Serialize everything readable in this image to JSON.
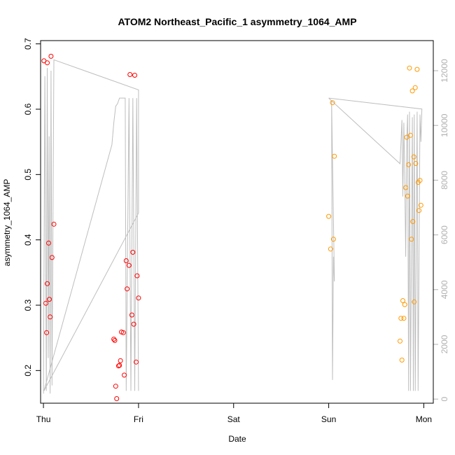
{
  "chart_data": {
    "type": "scatter",
    "title": "ATOM2 Northeast_Pacific_1 asymmetry_1064_AMP",
    "xlabel": "Date",
    "ylabel": "asymmetry_1064_AMP",
    "x_unit": "days",
    "xlim": [
      -0.03,
      4.1
    ],
    "ylim": [
      0.15,
      0.705
    ],
    "y2lim": [
      -150,
      13100
    ],
    "x_ticks": [
      {
        "value": 0,
        "label": "Thu"
      },
      {
        "value": 1,
        "label": "Fri"
      },
      {
        "value": 2,
        "label": "Sat"
      },
      {
        "value": 3,
        "label": "Sun"
      },
      {
        "value": 4,
        "label": "Mon"
      }
    ],
    "y_ticks": [
      {
        "value": 0.2,
        "label": "0.2"
      },
      {
        "value": 0.3,
        "label": "0.3"
      },
      {
        "value": 0.4,
        "label": "0.4"
      },
      {
        "value": 0.5,
        "label": "0.5"
      },
      {
        "value": 0.6,
        "label": "0.6"
      },
      {
        "value": 0.7,
        "label": "0.7"
      }
    ],
    "y2_ticks": [
      {
        "value": 0,
        "label": "0"
      },
      {
        "value": 2000,
        "label": "2000"
      },
      {
        "value": 4000,
        "label": "4000"
      },
      {
        "value": 6000,
        "label": "6000"
      },
      {
        "value": 8000,
        "label": "8000"
      },
      {
        "value": 10000,
        "label": "10000"
      },
      {
        "value": 12000,
        "label": "12000"
      }
    ],
    "grid": false,
    "legend": "none",
    "series": [
      {
        "color": "#ff0000",
        "points": [
          {
            "x": 0.005,
            "y": 0.674
          },
          {
            "x": 0.04,
            "y": 0.671
          },
          {
            "x": 0.08,
            "y": 0.681
          },
          {
            "x": 0.025,
            "y": 0.303
          },
          {
            "x": 0.033,
            "y": 0.258
          },
          {
            "x": 0.04,
            "y": 0.333
          },
          {
            "x": 0.055,
            "y": 0.395
          },
          {
            "x": 0.062,
            "y": 0.309
          },
          {
            "x": 0.07,
            "y": 0.282
          },
          {
            "x": 0.09,
            "y": 0.373
          },
          {
            "x": 0.11,
            "y": 0.424
          },
          {
            "x": 0.74,
            "y": 0.248
          },
          {
            "x": 0.75,
            "y": 0.246
          },
          {
            "x": 0.76,
            "y": 0.176
          },
          {
            "x": 0.77,
            "y": 0.157
          },
          {
            "x": 0.79,
            "y": 0.207
          },
          {
            "x": 0.8,
            "y": 0.208
          },
          {
            "x": 0.81,
            "y": 0.215
          },
          {
            "x": 0.82,
            "y": 0.259
          },
          {
            "x": 0.84,
            "y": 0.258
          },
          {
            "x": 0.85,
            "y": 0.193
          },
          {
            "x": 0.87,
            "y": 0.368
          },
          {
            "x": 0.88,
            "y": 0.325
          },
          {
            "x": 0.9,
            "y": 0.361
          },
          {
            "x": 0.91,
            "y": 0.653
          },
          {
            "x": 0.93,
            "y": 0.285
          },
          {
            "x": 0.94,
            "y": 0.381
          },
          {
            "x": 0.95,
            "y": 0.271
          },
          {
            "x": 0.96,
            "y": 0.652
          },
          {
            "x": 0.975,
            "y": 0.213
          },
          {
            "x": 0.985,
            "y": 0.345
          },
          {
            "x": 1.0,
            "y": 0.311
          }
        ]
      },
      {
        "color": "#ff9900",
        "points": [
          {
            "x": 3.0,
            "y": 0.436
          },
          {
            "x": 3.02,
            "y": 0.386
          },
          {
            "x": 3.04,
            "y": 0.61
          },
          {
            "x": 3.05,
            "y": 0.401
          },
          {
            "x": 3.06,
            "y": 0.528
          },
          {
            "x": 3.75,
            "y": 0.245
          },
          {
            "x": 3.76,
            "y": 0.28
          },
          {
            "x": 3.77,
            "y": 0.216
          },
          {
            "x": 3.78,
            "y": 0.307
          },
          {
            "x": 3.79,
            "y": 0.28
          },
          {
            "x": 3.8,
            "y": 0.301
          },
          {
            "x": 3.81,
            "y": 0.48
          },
          {
            "x": 3.82,
            "y": 0.557
          },
          {
            "x": 3.83,
            "y": 0.467
          },
          {
            "x": 3.84,
            "y": 0.515
          },
          {
            "x": 3.85,
            "y": 0.663
          },
          {
            "x": 3.86,
            "y": 0.56
          },
          {
            "x": 3.87,
            "y": 0.401
          },
          {
            "x": 3.88,
            "y": 0.628
          },
          {
            "x": 3.885,
            "y": 0.428
          },
          {
            "x": 3.895,
            "y": 0.527
          },
          {
            "x": 3.9,
            "y": 0.305
          },
          {
            "x": 3.91,
            "y": 0.633
          },
          {
            "x": 3.915,
            "y": 0.517
          },
          {
            "x": 3.93,
            "y": 0.661
          },
          {
            "x": 3.94,
            "y": 0.488
          },
          {
            "x": 3.95,
            "y": 0.445
          },
          {
            "x": 3.96,
            "y": 0.491
          },
          {
            "x": 3.97,
            "y": 0.453
          }
        ]
      }
    ],
    "secondary_line": {
      "color": "#bebebe",
      "points": [
        {
          "x": 0.0,
          "y2": 200
        },
        {
          "x": 0.015,
          "y2": 11800
        },
        {
          "x": 0.03,
          "y2": 300
        },
        {
          "x": 0.04,
          "y2": 12100
        },
        {
          "x": 0.05,
          "y2": 1500
        },
        {
          "x": 0.06,
          "y2": 9600
        },
        {
          "x": 0.07,
          "y2": 200
        },
        {
          "x": 0.08,
          "y2": 12000
        },
        {
          "x": 0.09,
          "y2": 500
        },
        {
          "x": 0.11,
          "y2": 12400
        },
        {
          "x": 1.0,
          "y2": 11300
        },
        {
          "x": 1.0,
          "y2": 6800
        },
        {
          "x": 0.005,
          "y2": 300
        },
        {
          "x": 0.72,
          "y2": 9300
        },
        {
          "x": 0.74,
          "y2": 10100
        },
        {
          "x": 0.76,
          "y2": 10700
        },
        {
          "x": 0.78,
          "y2": 10800
        },
        {
          "x": 0.8,
          "y2": 11000
        },
        {
          "x": 0.82,
          "y2": 11000
        },
        {
          "x": 0.86,
          "y2": 11000
        },
        {
          "x": 0.87,
          "y2": 300
        },
        {
          "x": 0.9,
          "y2": 11000
        },
        {
          "x": 0.92,
          "y2": 300
        },
        {
          "x": 0.94,
          "y2": 11000
        },
        {
          "x": 0.96,
          "y2": 300
        },
        {
          "x": 0.98,
          "y2": 11000
        },
        {
          "x": 1.0,
          "y2": 300
        }
      ]
    },
    "secondary_line_b": {
      "color": "#bebebe",
      "points": [
        {
          "x": 3.0,
          "y2": 11000
        },
        {
          "x": 3.03,
          "y2": 10900
        },
        {
          "x": 3.04,
          "y2": 700
        },
        {
          "x": 3.05,
          "y2": 5200
        },
        {
          "x": 3.06,
          "y2": 4300
        },
        {
          "x": 3.03,
          "y2": 10900
        },
        {
          "x": 3.75,
          "y2": 8600
        },
        {
          "x": 3.77,
          "y2": 10200
        },
        {
          "x": 3.78,
          "y2": 7400
        },
        {
          "x": 3.79,
          "y2": 10100
        },
        {
          "x": 3.8,
          "y2": 8200
        },
        {
          "x": 3.81,
          "y2": 5200
        },
        {
          "x": 3.82,
          "y2": 9400
        },
        {
          "x": 3.83,
          "y2": 10400
        },
        {
          "x": 3.84,
          "y2": 300
        },
        {
          "x": 3.85,
          "y2": 10500
        },
        {
          "x": 3.86,
          "y2": 300
        },
        {
          "x": 3.88,
          "y2": 10300
        },
        {
          "x": 3.89,
          "y2": 300
        },
        {
          "x": 3.9,
          "y2": 10400
        },
        {
          "x": 3.91,
          "y2": 300
        },
        {
          "x": 3.93,
          "y2": 10500
        },
        {
          "x": 3.94,
          "y2": 300
        },
        {
          "x": 3.96,
          "y2": 10400
        },
        {
          "x": 3.97,
          "y2": 9400
        },
        {
          "x": 3.98,
          "y2": 10600
        },
        {
          "x": 3.0,
          "y2": 11000
        }
      ]
    }
  }
}
